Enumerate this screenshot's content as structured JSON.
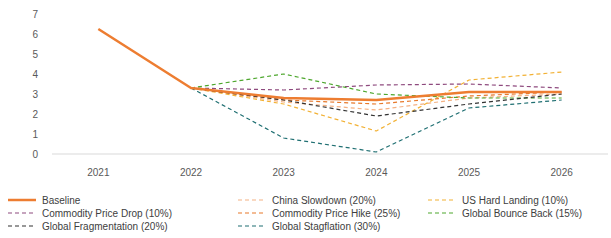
{
  "chart_data": {
    "type": "line",
    "categories": [
      "2021",
      "2022",
      "2023",
      "2024",
      "2025",
      "2026"
    ],
    "ylim": [
      0,
      7
    ],
    "yticks": [
      0,
      1,
      2,
      3,
      4,
      5,
      6,
      7
    ],
    "grid": false,
    "legend": "bottom",
    "series": [
      {
        "name": "Baseline",
        "color": "#ed7d31",
        "line_style": "solid",
        "values": [
          6.25,
          3.3,
          2.8,
          2.7,
          3.1,
          3.1
        ]
      },
      {
        "name": "China Slowdown (20%)",
        "color": "#f4b183",
        "line_style": "dashed",
        "values": [
          null,
          3.3,
          2.6,
          2.2,
          2.8,
          3.0
        ]
      },
      {
        "name": "US Hard Landing (10%)",
        "color": "#f2b134",
        "line_style": "dashed",
        "values": [
          null,
          3.3,
          2.5,
          1.15,
          3.7,
          4.1
        ]
      },
      {
        "name": "Commodity Price Drop (10%)",
        "color": "#8e4a7e",
        "line_style": "dashed",
        "values": [
          null,
          3.3,
          3.2,
          3.45,
          3.5,
          3.3
        ]
      },
      {
        "name": "Commodity Price Hike (25%)",
        "color": "#e7792b",
        "line_style": "dashed",
        "values": [
          null,
          3.3,
          2.7,
          2.5,
          2.9,
          3.1
        ]
      },
      {
        "name": "Global Bounce Back (15%)",
        "color": "#4ea72e",
        "line_style": "dashed",
        "values": [
          null,
          3.3,
          4.0,
          3.0,
          2.8,
          2.8
        ]
      },
      {
        "name": "Global Fragmentation (20%)",
        "color": "#333333",
        "line_style": "dashed",
        "values": [
          null,
          3.3,
          2.7,
          1.9,
          2.5,
          3.0
        ]
      },
      {
        "name": "Global Stagflation (30%)",
        "color": "#1f6f72",
        "line_style": "dashed",
        "values": [
          null,
          3.3,
          0.8,
          0.1,
          2.3,
          2.7
        ]
      }
    ]
  }
}
